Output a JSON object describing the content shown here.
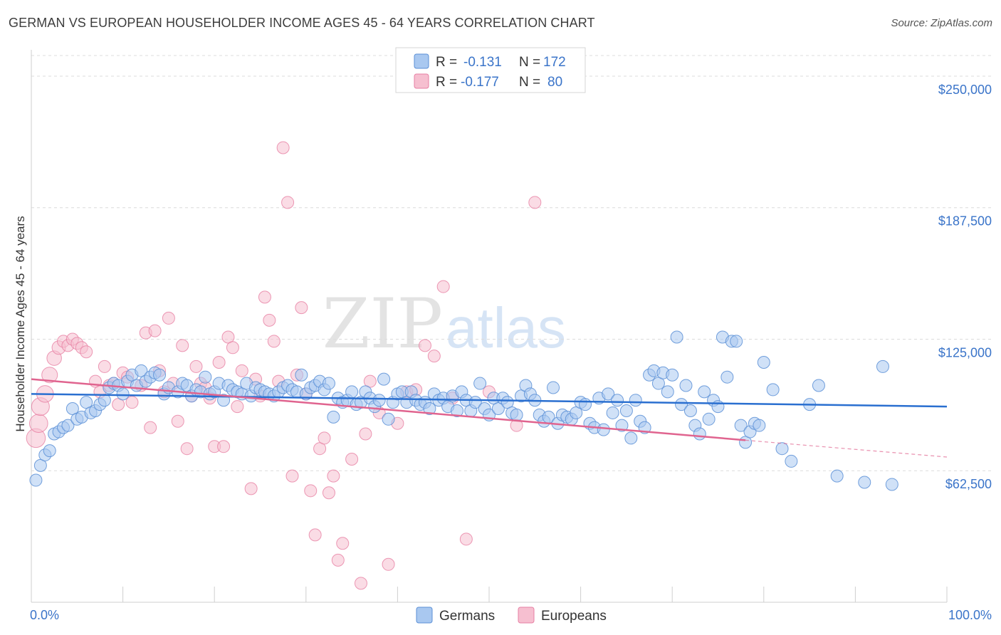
{
  "title": "GERMAN VS EUROPEAN HOUSEHOLDER INCOME AGES 45 - 64 YEARS CORRELATION CHART",
  "source": "Source: ZipAtlas.com",
  "watermark": {
    "zip": "ZIP",
    "atlas": "atlas"
  },
  "colors": {
    "germans_fill": "#a9c8f0",
    "germans_stroke": "#5b8fd6",
    "germans_line": "#2a6fd0",
    "europeans_fill": "#f6bfd0",
    "europeans_stroke": "#e77fa3",
    "europeans_line": "#e0648f",
    "grid": "#dcdcdc",
    "tick_text": "#3a74c9"
  },
  "legend": {
    "rows": [
      {
        "r_label": "R =",
        "r_value": "-0.131",
        "n_label": "N =",
        "n_value": "172"
      },
      {
        "r_label": "R =",
        "r_value": "-0.177",
        "n_label": "N =",
        "n_value": "80"
      }
    ]
  },
  "bottom_legend": [
    "Germans",
    "Europeans"
  ],
  "chart_data": {
    "type": "scatter",
    "title": "GERMAN VS EUROPEAN HOUSEHOLDER INCOME AGES 45 - 64 YEARS CORRELATION CHART",
    "xlabel": "",
    "ylabel": "Householder Income Ages 45 - 64 years",
    "xlim": [
      0,
      100
    ],
    "ylim": [
      0,
      262500
    ],
    "x_tick_labels": [
      "0.0%",
      "100.0%"
    ],
    "y_ticks": [
      62500,
      125000,
      187500,
      250000
    ],
    "y_tick_labels": [
      "$62,500",
      "$125,000",
      "$187,500",
      "$250,000"
    ],
    "grid": "horizontal dashed",
    "legend_position": "top-center",
    "series": [
      {
        "name": "Germans",
        "r": -0.131,
        "n": 172,
        "trend": {
          "x": [
            0,
            100
          ],
          "y": [
            99000,
            93000
          ]
        },
        "points": [
          [
            0.5,
            58000
          ],
          [
            1,
            65000
          ],
          [
            1.5,
            70000
          ],
          [
            2,
            72000
          ],
          [
            2.5,
            80000
          ],
          [
            3,
            81000
          ],
          [
            3.5,
            83000
          ],
          [
            4,
            84000
          ],
          [
            4.5,
            92000
          ],
          [
            5,
            87000
          ],
          [
            5.5,
            88000
          ],
          [
            6,
            95000
          ],
          [
            6.5,
            90000
          ],
          [
            7,
            91000
          ],
          [
            7.5,
            94000
          ],
          [
            8,
            96000
          ],
          [
            8.5,
            102000
          ],
          [
            9,
            104000
          ],
          [
            9.5,
            103000
          ],
          [
            10,
            99000
          ],
          [
            10.5,
            105000
          ],
          [
            11,
            108000
          ],
          [
            11.5,
            103000
          ],
          [
            12,
            110000
          ],
          [
            12.5,
            105000
          ],
          [
            13,
            107000
          ],
          [
            13.5,
            109000
          ],
          [
            14,
            108000
          ],
          [
            14.5,
            99000
          ],
          [
            15,
            102000
          ],
          [
            16,
            100000
          ],
          [
            16.5,
            104000
          ],
          [
            17,
            103000
          ],
          [
            17.5,
            98000
          ],
          [
            18,
            101000
          ],
          [
            18.5,
            100000
          ],
          [
            19,
            107000
          ],
          [
            19.5,
            99000
          ],
          [
            20,
            100000
          ],
          [
            20.5,
            104000
          ],
          [
            21,
            96000
          ],
          [
            21.5,
            103000
          ],
          [
            22,
            101000
          ],
          [
            22.5,
            100000
          ],
          [
            23,
            99000
          ],
          [
            23.5,
            104000
          ],
          [
            24,
            98000
          ],
          [
            24.5,
            102000
          ],
          [
            25,
            101000
          ],
          [
            25.5,
            100000
          ],
          [
            26,
            99000
          ],
          [
            26.5,
            98000
          ],
          [
            27,
            100000
          ],
          [
            27.5,
            102000
          ],
          [
            28,
            103000
          ],
          [
            28.5,
            101000
          ],
          [
            29,
            100000
          ],
          [
            29.5,
            108000
          ],
          [
            30,
            99000
          ],
          [
            30.5,
            102000
          ],
          [
            31,
            103000
          ],
          [
            31.5,
            105000
          ],
          [
            32,
            101000
          ],
          [
            32.5,
            104000
          ],
          [
            33,
            88000
          ],
          [
            33.5,
            97000
          ],
          [
            34,
            95000
          ],
          [
            34.5,
            96000
          ],
          [
            35,
            100000
          ],
          [
            35.5,
            94000
          ],
          [
            36,
            95000
          ],
          [
            36.5,
            100000
          ],
          [
            37,
            97000
          ],
          [
            37.5,
            93000
          ],
          [
            38,
            96000
          ],
          [
            38.5,
            106000
          ],
          [
            39,
            87000
          ],
          [
            39.5,
            95000
          ],
          [
            40,
            99000
          ],
          [
            40.5,
            100000
          ],
          [
            41,
            95000
          ],
          [
            41.5,
            100000
          ],
          [
            42,
            96000
          ],
          [
            42.5,
            94000
          ],
          [
            43,
            95000
          ],
          [
            43.5,
            92000
          ],
          [
            44,
            99000
          ],
          [
            44.5,
            96000
          ],
          [
            45,
            97000
          ],
          [
            45.5,
            93000
          ],
          [
            46,
            98000
          ],
          [
            46.5,
            91000
          ],
          [
            47,
            100000
          ],
          [
            47.5,
            96000
          ],
          [
            48,
            91000
          ],
          [
            48.5,
            95000
          ],
          [
            49,
            104000
          ],
          [
            49.5,
            92000
          ],
          [
            50,
            89000
          ],
          [
            50.5,
            97000
          ],
          [
            51,
            92000
          ],
          [
            51.5,
            97000
          ],
          [
            52,
            95000
          ],
          [
            52.5,
            90000
          ],
          [
            53,
            89000
          ],
          [
            53.5,
            98000
          ],
          [
            54,
            103000
          ],
          [
            54.5,
            99000
          ],
          [
            55,
            96000
          ],
          [
            55.5,
            89000
          ],
          [
            56,
            86000
          ],
          [
            56.5,
            88000
          ],
          [
            57,
            102000
          ],
          [
            57.5,
            85000
          ],
          [
            58,
            89000
          ],
          [
            58.5,
            88000
          ],
          [
            59,
            87000
          ],
          [
            59.5,
            90000
          ],
          [
            60,
            95000
          ],
          [
            60.5,
            94000
          ],
          [
            61,
            85000
          ],
          [
            61.5,
            83000
          ],
          [
            62,
            97000
          ],
          [
            62.5,
            82000
          ],
          [
            63,
            99000
          ],
          [
            63.5,
            90000
          ],
          [
            64,
            96000
          ],
          [
            64.5,
            84000
          ],
          [
            65,
            91000
          ],
          [
            65.5,
            78000
          ],
          [
            66,
            96000
          ],
          [
            66.5,
            86000
          ],
          [
            67,
            83000
          ],
          [
            67.5,
            108000
          ],
          [
            68,
            110000
          ],
          [
            68.5,
            104000
          ],
          [
            69,
            109000
          ],
          [
            69.5,
            100000
          ],
          [
            70,
            108000
          ],
          [
            70.5,
            126000
          ],
          [
            71,
            94000
          ],
          [
            71.5,
            103000
          ],
          [
            72,
            91000
          ],
          [
            72.5,
            84000
          ],
          [
            73,
            80000
          ],
          [
            73.5,
            100000
          ],
          [
            74,
            87000
          ],
          [
            74.5,
            96000
          ],
          [
            75,
            93000
          ],
          [
            75.5,
            126000
          ],
          [
            76,
            107000
          ],
          [
            76.5,
            124000
          ],
          [
            77,
            124000
          ],
          [
            77.5,
            84000
          ],
          [
            78,
            76000
          ],
          [
            78.5,
            81000
          ],
          [
            79,
            85000
          ],
          [
            79.5,
            84000
          ],
          [
            80,
            114000
          ],
          [
            81,
            101000
          ],
          [
            82,
            73000
          ],
          [
            83,
            67000
          ],
          [
            85,
            94000
          ],
          [
            86,
            103000
          ],
          [
            88,
            60000
          ],
          [
            91,
            57000
          ],
          [
            93,
            112000
          ],
          [
            94,
            56000
          ]
        ]
      },
      {
        "name": "Europeans",
        "r": -0.177,
        "n": 80,
        "trend": {
          "x": [
            0,
            78,
            100
          ],
          "y": [
            106000,
            77000,
            69000
          ]
        },
        "points": [
          [
            0.5,
            78000
          ],
          [
            0.8,
            85000
          ],
          [
            1,
            93000
          ],
          [
            1.5,
            99000
          ],
          [
            2,
            108000
          ],
          [
            2.5,
            116000
          ],
          [
            3,
            121000
          ],
          [
            3.5,
            124000
          ],
          [
            4,
            122000
          ],
          [
            4.5,
            125000
          ],
          [
            5,
            123000
          ],
          [
            5.5,
            121000
          ],
          [
            6,
            119000
          ],
          [
            7,
            105000
          ],
          [
            7.5,
            100000
          ],
          [
            8,
            112000
          ],
          [
            8.5,
            103000
          ],
          [
            9,
            104000
          ],
          [
            9.5,
            94000
          ],
          [
            10,
            109000
          ],
          [
            10.5,
            107000
          ],
          [
            11,
            95000
          ],
          [
            12,
            103000
          ],
          [
            12.5,
            128000
          ],
          [
            13,
            83000
          ],
          [
            13.5,
            129000
          ],
          [
            14,
            110000
          ],
          [
            14.5,
            100000
          ],
          [
            15,
            135000
          ],
          [
            15.5,
            104000
          ],
          [
            16,
            86000
          ],
          [
            16.5,
            122000
          ],
          [
            17,
            73000
          ],
          [
            17.5,
            98000
          ],
          [
            18,
            112000
          ],
          [
            18.5,
            104000
          ],
          [
            19,
            102000
          ],
          [
            19.5,
            97000
          ],
          [
            20,
            74000
          ],
          [
            20.5,
            114000
          ],
          [
            21,
            74000
          ],
          [
            21.5,
            126000
          ],
          [
            22,
            121000
          ],
          [
            22.5,
            93000
          ],
          [
            23,
            110000
          ],
          [
            24,
            54000
          ],
          [
            24.5,
            106000
          ],
          [
            25,
            98000
          ],
          [
            25.5,
            145000
          ],
          [
            26,
            134000
          ],
          [
            26.5,
            124000
          ],
          [
            27,
            105000
          ],
          [
            27.5,
            216000
          ],
          [
            28,
            190000
          ],
          [
            28.5,
            60000
          ],
          [
            29,
            108000
          ],
          [
            29.5,
            140000
          ],
          [
            30,
            99000
          ],
          [
            30.5,
            53000
          ],
          [
            31,
            32000
          ],
          [
            31.5,
            73000
          ],
          [
            32,
            78000
          ],
          [
            32.5,
            52000
          ],
          [
            33,
            60000
          ],
          [
            33.5,
            20000
          ],
          [
            34,
            28000
          ],
          [
            35,
            68000
          ],
          [
            36,
            9000
          ],
          [
            36.5,
            80000
          ],
          [
            37,
            105000
          ],
          [
            38,
            90000
          ],
          [
            39,
            18000
          ],
          [
            40,
            85000
          ],
          [
            41,
            100000
          ],
          [
            42,
            101000
          ],
          [
            43,
            122000
          ],
          [
            44,
            117000
          ],
          [
            45,
            150000
          ],
          [
            46,
            97000
          ],
          [
            47.5,
            30000
          ],
          [
            50,
            100000
          ],
          [
            53,
            84000
          ],
          [
            55,
            190000
          ]
        ]
      }
    ]
  }
}
